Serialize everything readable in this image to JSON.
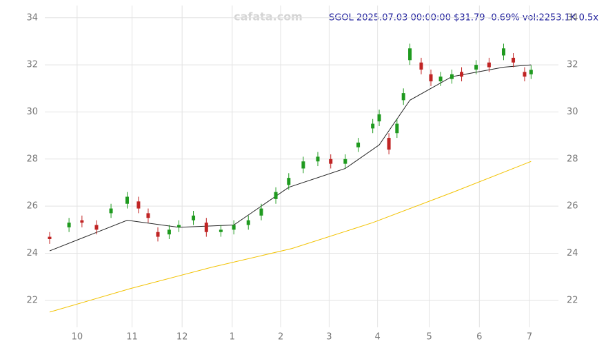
{
  "chart_data": {
    "type": "candlestick",
    "title": "SGOL 2025.07.03 00:00:00 $31.79 -0.69% vol:2253.1K 0.5x",
    "watermark": "cafata.com",
    "x": [
      0,
      12,
      20,
      29,
      38,
      48,
      55,
      61,
      67,
      74,
      80,
      89,
      97,
      106,
      114,
      123,
      131,
      140,
      148,
      157,
      166,
      174,
      183,
      191,
      200,
      204,
      210,
      215,
      219,
      223,
      230,
      236,
      242,
      249,
      255,
      264,
      272,
      281,
      287,
      294,
      298
    ],
    "open": [
      24.7,
      25.1,
      25.4,
      25.2,
      25.7,
      26.1,
      26.2,
      25.7,
      24.9,
      24.8,
      25.1,
      25.4,
      25.3,
      24.9,
      25.0,
      25.2,
      25.6,
      26.3,
      26.9,
      27.6,
      27.9,
      28.0,
      27.8,
      28.5,
      29.3,
      29.6,
      28.9,
      29.1,
      30.5,
      32.2,
      32.1,
      31.6,
      31.3,
      31.4,
      31.7,
      31.8,
      32.1,
      32.4,
      32.3,
      31.7,
      31.6
    ],
    "high": [
      24.9,
      25.5,
      25.6,
      25.4,
      26.1,
      26.6,
      26.4,
      25.9,
      25.1,
      25.2,
      25.4,
      25.8,
      25.5,
      25.2,
      25.4,
      25.6,
      26.1,
      26.8,
      27.4,
      28.1,
      28.3,
      28.2,
      28.2,
      28.9,
      29.7,
      30.1,
      29.1,
      29.7,
      31.0,
      32.9,
      32.3,
      31.8,
      31.7,
      31.8,
      31.9,
      32.2,
      32.3,
      32.9,
      32.5,
      31.9,
      31.99
    ],
    "low": [
      24.4,
      24.9,
      25.1,
      24.8,
      25.5,
      25.9,
      25.7,
      25.3,
      24.5,
      24.6,
      24.9,
      25.2,
      24.7,
      24.7,
      24.8,
      25.0,
      25.4,
      26.1,
      26.7,
      27.4,
      27.7,
      27.6,
      27.6,
      28.3,
      29.1,
      29.4,
      28.2,
      28.9,
      30.3,
      32.0,
      31.6,
      31.1,
      31.1,
      31.2,
      31.3,
      31.6,
      31.7,
      32.2,
      31.9,
      31.3,
      31.4
    ],
    "close": [
      24.6,
      25.3,
      25.3,
      25.0,
      25.9,
      26.4,
      25.9,
      25.5,
      24.7,
      25.0,
      25.2,
      25.6,
      24.9,
      25.0,
      25.2,
      25.4,
      25.9,
      26.6,
      27.2,
      27.9,
      28.1,
      27.8,
      28.0,
      28.7,
      29.5,
      29.9,
      28.4,
      29.5,
      30.8,
      32.7,
      31.8,
      31.3,
      31.5,
      31.6,
      31.5,
      32.0,
      31.9,
      32.7,
      32.1,
      31.5,
      31.79
    ],
    "up_color": "#1f9a1f",
    "down_color": "#c02424",
    "lines": [
      {
        "color": "#222222",
        "x": [
          0,
          48,
          80,
          114,
          148,
          183,
          204,
          223,
          249,
          281,
          298
        ],
        "values": [
          24.1,
          25.4,
          25.1,
          25.2,
          26.8,
          27.6,
          28.6,
          30.5,
          31.5,
          31.9,
          32.0
        ]
      },
      {
        "color": "#f2c200",
        "x": [
          0,
          50,
          100,
          150,
          200,
          250,
          298
        ],
        "values": [
          21.5,
          22.5,
          23.4,
          24.2,
          25.3,
          26.6,
          27.9
        ]
      }
    ],
    "xlim": [
      0,
      300
    ],
    "xticks": [
      {
        "value": 17,
        "label": "10"
      },
      {
        "value": 51,
        "label": "11"
      },
      {
        "value": 82,
        "label": "12"
      },
      {
        "value": 113,
        "label": "1"
      },
      {
        "value": 143,
        "label": "2"
      },
      {
        "value": 173,
        "label": "3"
      },
      {
        "value": 203,
        "label": "4"
      },
      {
        "value": 235,
        "label": "5"
      },
      {
        "value": 266,
        "label": "6"
      },
      {
        "value": 297,
        "label": "7"
      }
    ],
    "ylim": [
      21,
      34.5
    ],
    "yticks": [
      22,
      24,
      26,
      28,
      30,
      32,
      34
    ],
    "grid": true
  }
}
